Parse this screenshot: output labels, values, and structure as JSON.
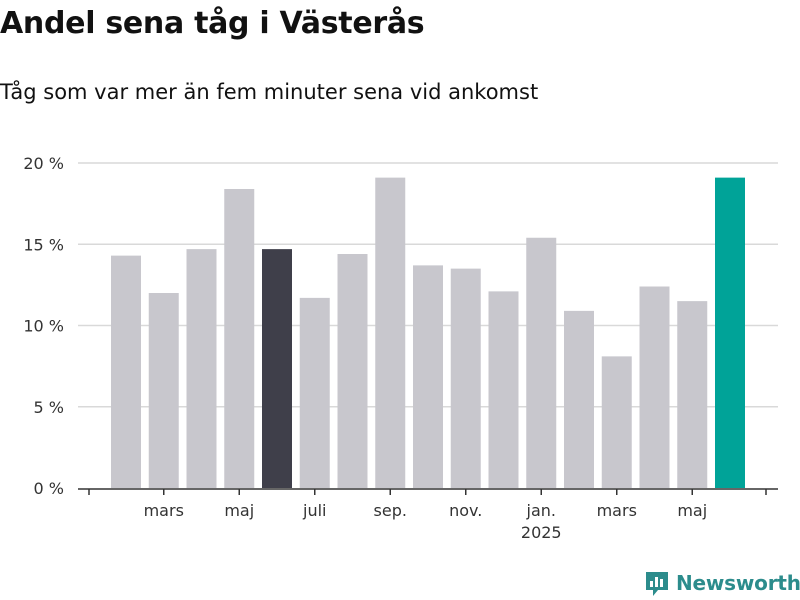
{
  "title": "Andel sena tåg i Västerås",
  "subtitle": "Tåg som var mer än fem minuter sena vid ankomst",
  "brand": {
    "name": "Newsworthy",
    "icon": "newsworthy-logo-icon",
    "color": "#2c8c8c"
  },
  "colors": {
    "default_bar": "#c8c7cd",
    "highlight_dark": "#3f3f4a",
    "highlight_current": "#00a398",
    "grid": "#d9d9d9",
    "axis": "#333333"
  },
  "chart_data": {
    "type": "bar",
    "title": "Andel sena tåg i Västerås",
    "subtitle": "Tåg som var mer än fem minuter sena vid ankomst",
    "xlabel": "",
    "ylabel": "",
    "ylim": [
      0,
      20
    ],
    "yticks": [
      0,
      5,
      10,
      15,
      20
    ],
    "ytick_labels": [
      "0 %",
      "5 %",
      "10 %",
      "15 %",
      "20 %"
    ],
    "categories": [
      "2024-02",
      "2024-03",
      "2024-04",
      "2024-05",
      "2024-06",
      "2024-07",
      "2024-08",
      "2024-09",
      "2024-10",
      "2024-11",
      "2024-12",
      "2025-01",
      "2025-02",
      "2025-03",
      "2025-04",
      "2025-05",
      "2025-06"
    ],
    "values": [
      14.3,
      12.0,
      14.7,
      18.4,
      14.7,
      11.7,
      14.4,
      19.1,
      13.7,
      13.5,
      12.1,
      15.4,
      10.9,
      8.1,
      12.4,
      11.5,
      19.1
    ],
    "highlight": {
      "2024-06": "highlight_dark",
      "2025-06": "highlight_current"
    },
    "xtick_labels": [
      {
        "category": "2024-03",
        "label": "mars"
      },
      {
        "category": "2024-05",
        "label": "maj"
      },
      {
        "category": "2024-07",
        "label": "juli"
      },
      {
        "category": "2024-09",
        "label": "sep."
      },
      {
        "category": "2024-11",
        "label": "nov."
      },
      {
        "category": "2025-01",
        "label": "jan.",
        "sublabel": "2025"
      },
      {
        "category": "2025-03",
        "label": "mars"
      },
      {
        "category": "2025-05",
        "label": "maj"
      }
    ],
    "grid": true,
    "legend": "none"
  }
}
